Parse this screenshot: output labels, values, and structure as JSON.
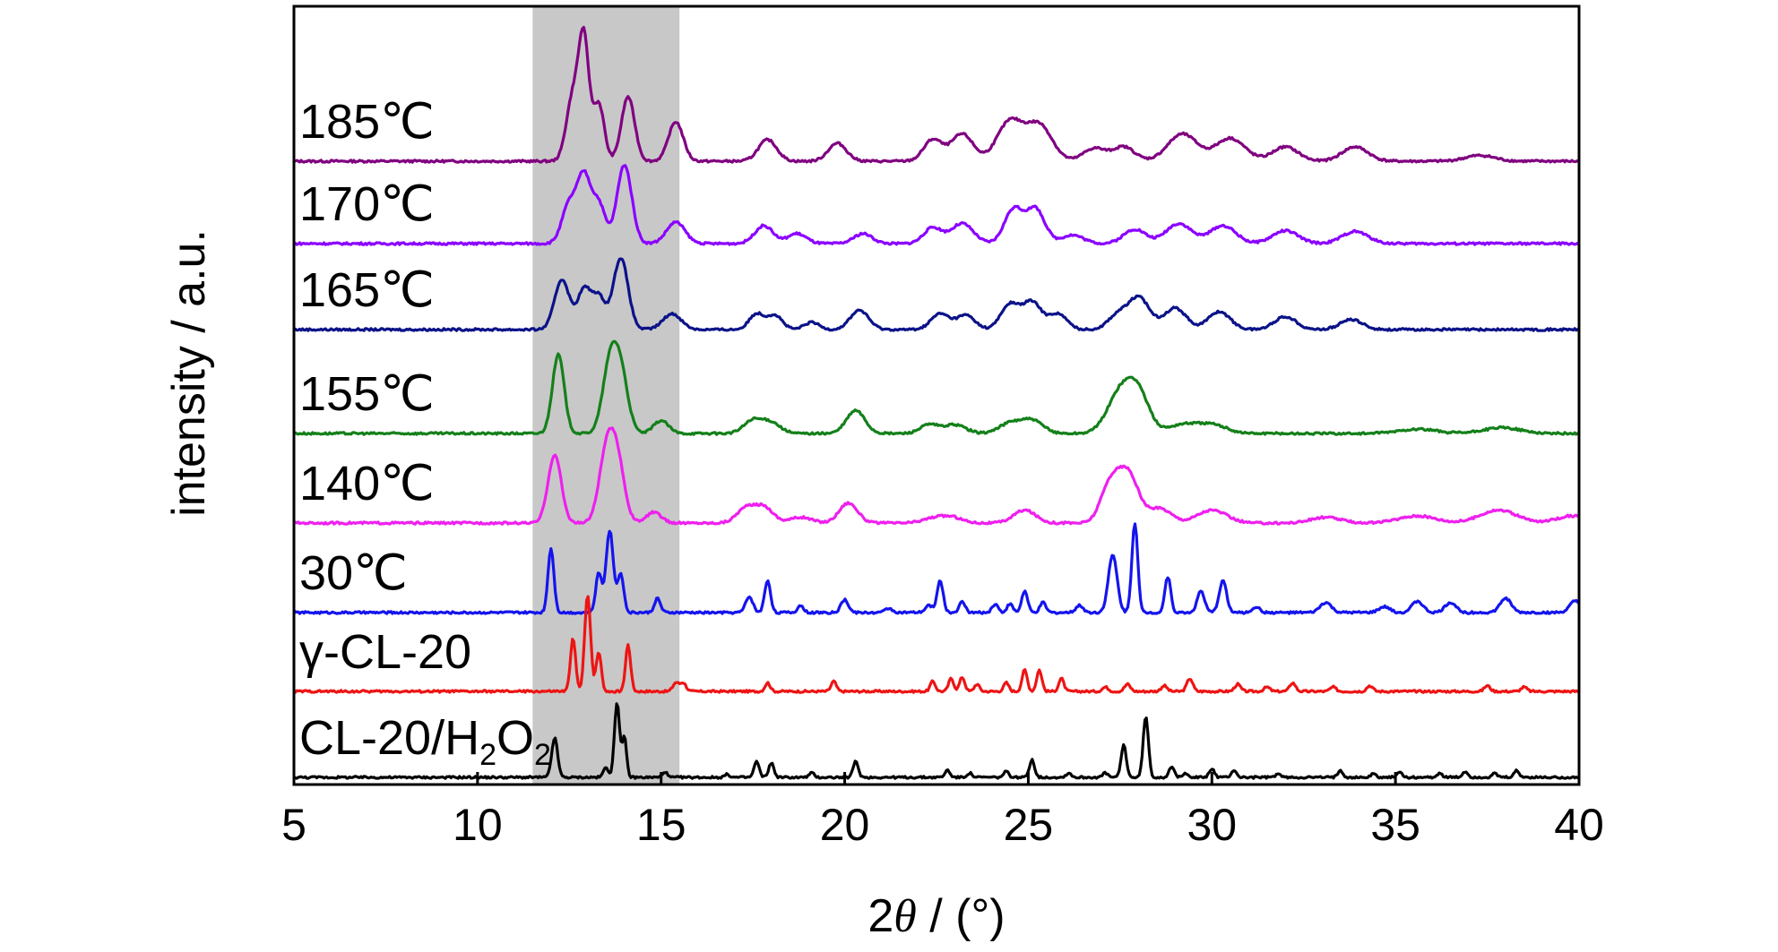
{
  "chart_data": {
    "type": "line",
    "title": "",
    "xlabel": "2θ / (°)",
    "xlabel_parts": {
      "pre": "2",
      "theta": "θ",
      "post": " / (°)"
    },
    "ylabel": "intensity / a.u.",
    "xlim": [
      5,
      40
    ],
    "xticks": [
      "5",
      "10",
      "15",
      "20",
      "25",
      "30",
      "35",
      "40"
    ],
    "y_ticks_shown": false,
    "grid": false,
    "legend": "none (series labelled directly on left)",
    "highlight_band": {
      "x": [
        11.5,
        15.5
      ],
      "color": "#c8c8c8"
    },
    "series": [
      {
        "name": "185℃",
        "color": "#800080",
        "offset": 7.4,
        "peaks": [
          [
            12.6,
            0.9,
            0.18
          ],
          [
            12.9,
            1.6,
            0.14
          ],
          [
            13.3,
            0.8,
            0.15
          ],
          [
            14.1,
            0.9,
            0.18
          ],
          [
            15.4,
            0.55,
            0.2
          ],
          [
            17.9,
            0.3,
            0.25
          ],
          [
            19.8,
            0.25,
            0.25
          ],
          [
            22.4,
            0.3,
            0.25
          ],
          [
            23.2,
            0.38,
            0.3
          ],
          [
            24.5,
            0.55,
            0.35
          ],
          [
            25.3,
            0.5,
            0.35
          ],
          [
            26.8,
            0.18,
            0.3
          ],
          [
            27.6,
            0.2,
            0.3
          ],
          [
            29.2,
            0.38,
            0.4
          ],
          [
            30.5,
            0.32,
            0.4
          ],
          [
            32.0,
            0.2,
            0.35
          ],
          [
            33.9,
            0.2,
            0.35
          ],
          [
            37.3,
            0.08,
            0.4
          ]
        ]
      },
      {
        "name": "170℃",
        "color": "#8b00ff",
        "offset": 6.25,
        "peaks": [
          [
            12.5,
            0.55,
            0.2
          ],
          [
            12.9,
            0.9,
            0.18
          ],
          [
            13.3,
            0.55,
            0.18
          ],
          [
            14.0,
            1.1,
            0.2
          ],
          [
            15.4,
            0.3,
            0.25
          ],
          [
            17.8,
            0.25,
            0.25
          ],
          [
            18.7,
            0.14,
            0.25
          ],
          [
            20.5,
            0.14,
            0.25
          ],
          [
            22.4,
            0.22,
            0.25
          ],
          [
            23.2,
            0.28,
            0.3
          ],
          [
            24.6,
            0.48,
            0.25
          ],
          [
            25.2,
            0.48,
            0.25
          ],
          [
            26.2,
            0.12,
            0.3
          ],
          [
            27.9,
            0.2,
            0.3
          ],
          [
            29.1,
            0.28,
            0.35
          ],
          [
            30.3,
            0.25,
            0.35
          ],
          [
            32.0,
            0.18,
            0.35
          ],
          [
            33.9,
            0.17,
            0.35
          ]
        ]
      },
      {
        "name": "165℃",
        "color": "#0b1288",
        "offset": 5.05,
        "peaks": [
          [
            12.3,
            0.7,
            0.2
          ],
          [
            12.9,
            0.55,
            0.18
          ],
          [
            13.3,
            0.45,
            0.18
          ],
          [
            13.9,
            1.0,
            0.2
          ],
          [
            15.3,
            0.22,
            0.25
          ],
          [
            17.6,
            0.22,
            0.2
          ],
          [
            18.1,
            0.2,
            0.2
          ],
          [
            19.1,
            0.1,
            0.2
          ],
          [
            20.4,
            0.27,
            0.25
          ],
          [
            22.6,
            0.22,
            0.25
          ],
          [
            23.3,
            0.2,
            0.25
          ],
          [
            24.5,
            0.35,
            0.25
          ],
          [
            25.1,
            0.38,
            0.25
          ],
          [
            25.8,
            0.22,
            0.25
          ],
          [
            27.4,
            0.18,
            0.25
          ],
          [
            28.0,
            0.45,
            0.3
          ],
          [
            29.0,
            0.3,
            0.3
          ],
          [
            30.2,
            0.25,
            0.3
          ],
          [
            32.0,
            0.18,
            0.3
          ],
          [
            33.8,
            0.14,
            0.3
          ]
        ]
      },
      {
        "name": "155℃",
        "color": "#14801a",
        "offset": 3.6,
        "peaks": [
          [
            12.2,
            1.1,
            0.16
          ],
          [
            13.6,
            0.9,
            0.2
          ],
          [
            13.9,
            0.8,
            0.2
          ],
          [
            15.0,
            0.18,
            0.2
          ],
          [
            17.5,
            0.18,
            0.25
          ],
          [
            18.0,
            0.15,
            0.25
          ],
          [
            20.3,
            0.32,
            0.25
          ],
          [
            22.3,
            0.12,
            0.25
          ],
          [
            23.0,
            0.12,
            0.3
          ],
          [
            24.5,
            0.14,
            0.3
          ],
          [
            25.1,
            0.18,
            0.3
          ],
          [
            27.5,
            0.55,
            0.35
          ],
          [
            28.0,
            0.5,
            0.3
          ],
          [
            29.2,
            0.12,
            0.4
          ],
          [
            30.0,
            0.12,
            0.4
          ],
          [
            35.6,
            0.06,
            0.5
          ],
          [
            37.9,
            0.08,
            0.5
          ]
        ]
      },
      {
        "name": "140℃",
        "color": "#ee20ee",
        "offset": 2.35,
        "peaks": [
          [
            12.1,
            0.95,
            0.18
          ],
          [
            13.5,
            0.9,
            0.2
          ],
          [
            13.8,
            0.85,
            0.2
          ],
          [
            14.8,
            0.15,
            0.2
          ],
          [
            17.3,
            0.2,
            0.25
          ],
          [
            17.8,
            0.22,
            0.25
          ],
          [
            18.8,
            0.08,
            0.3
          ],
          [
            20.1,
            0.28,
            0.25
          ],
          [
            22.4,
            0.06,
            0.3
          ],
          [
            22.9,
            0.08,
            0.3
          ],
          [
            24.9,
            0.18,
            0.3
          ],
          [
            27.2,
            0.45,
            0.25
          ],
          [
            27.7,
            0.7,
            0.3
          ],
          [
            28.6,
            0.2,
            0.3
          ],
          [
            30.0,
            0.18,
            0.4
          ],
          [
            33.1,
            0.08,
            0.4
          ],
          [
            35.6,
            0.1,
            0.5
          ],
          [
            37.8,
            0.18,
            0.5
          ],
          [
            39.8,
            0.1,
            0.4
          ]
        ]
      },
      {
        "name": "30℃",
        "color": "#1414ee",
        "offset": 1.1,
        "peaks": [
          [
            12.0,
            0.9,
            0.08
          ],
          [
            13.3,
            0.55,
            0.08
          ],
          [
            13.6,
            1.15,
            0.1
          ],
          [
            13.9,
            0.55,
            0.08
          ],
          [
            14.9,
            0.2,
            0.08
          ],
          [
            17.4,
            0.22,
            0.1
          ],
          [
            17.9,
            0.45,
            0.08
          ],
          [
            18.8,
            0.1,
            0.08
          ],
          [
            20.0,
            0.18,
            0.1
          ],
          [
            21.2,
            0.06,
            0.1
          ],
          [
            22.3,
            0.1,
            0.1
          ],
          [
            22.6,
            0.45,
            0.08
          ],
          [
            23.2,
            0.15,
            0.08
          ],
          [
            24.1,
            0.12,
            0.08
          ],
          [
            24.5,
            0.12,
            0.08
          ],
          [
            24.9,
            0.3,
            0.08
          ],
          [
            25.4,
            0.14,
            0.08
          ],
          [
            26.4,
            0.1,
            0.1
          ],
          [
            27.3,
            0.8,
            0.12
          ],
          [
            27.9,
            1.25,
            0.08
          ],
          [
            28.8,
            0.5,
            0.08
          ],
          [
            29.7,
            0.3,
            0.1
          ],
          [
            30.3,
            0.45,
            0.1
          ],
          [
            31.2,
            0.08,
            0.1
          ],
          [
            33.1,
            0.14,
            0.15
          ],
          [
            34.7,
            0.08,
            0.15
          ],
          [
            35.6,
            0.16,
            0.15
          ],
          [
            36.5,
            0.14,
            0.15
          ],
          [
            38.0,
            0.2,
            0.15
          ],
          [
            39.9,
            0.16,
            0.15
          ]
        ]
      },
      {
        "name": "γ-CL-20",
        "color": "#ee1414",
        "offset": 0.0,
        "peaks": [
          [
            12.6,
            0.75,
            0.07
          ],
          [
            13.0,
            1.35,
            0.08
          ],
          [
            13.3,
            0.55,
            0.07
          ],
          [
            14.1,
            0.65,
            0.07
          ],
          [
            15.4,
            0.12,
            0.08
          ],
          [
            15.6,
            0.12,
            0.08
          ],
          [
            17.9,
            0.12,
            0.07
          ],
          [
            19.7,
            0.14,
            0.07
          ],
          [
            22.4,
            0.14,
            0.07
          ],
          [
            22.9,
            0.18,
            0.07
          ],
          [
            23.2,
            0.2,
            0.07
          ],
          [
            23.6,
            0.1,
            0.07
          ],
          [
            24.4,
            0.12,
            0.07
          ],
          [
            24.9,
            0.3,
            0.07
          ],
          [
            25.3,
            0.3,
            0.07
          ],
          [
            25.9,
            0.18,
            0.07
          ],
          [
            27.1,
            0.06,
            0.08
          ],
          [
            27.7,
            0.1,
            0.08
          ],
          [
            28.7,
            0.08,
            0.08
          ],
          [
            29.4,
            0.18,
            0.08
          ],
          [
            30.7,
            0.1,
            0.08
          ],
          [
            31.5,
            0.06,
            0.08
          ],
          [
            32.2,
            0.12,
            0.08
          ],
          [
            33.3,
            0.06,
            0.08
          ],
          [
            34.3,
            0.08,
            0.08
          ],
          [
            37.5,
            0.08,
            0.08
          ],
          [
            38.5,
            0.06,
            0.08
          ]
        ]
      },
      {
        "name": "CL-20/H₂O₂",
        "label_parts": {
          "main": "CL-20/H",
          "sub1": "2",
          "mid": "O",
          "sub2": "2"
        },
        "color": "#000000",
        "offset": -1.2,
        "peaks": [
          [
            12.1,
            0.55,
            0.08
          ],
          [
            13.5,
            0.14,
            0.07
          ],
          [
            13.8,
            1.05,
            0.07
          ],
          [
            14.0,
            0.55,
            0.06
          ],
          [
            15.1,
            0.08,
            0.06
          ],
          [
            16.8,
            0.04,
            0.07
          ],
          [
            17.6,
            0.22,
            0.07
          ],
          [
            18.0,
            0.2,
            0.07
          ],
          [
            19.1,
            0.06,
            0.07
          ],
          [
            20.3,
            0.22,
            0.07
          ],
          [
            22.8,
            0.1,
            0.07
          ],
          [
            23.4,
            0.06,
            0.07
          ],
          [
            24.4,
            0.08,
            0.07
          ],
          [
            25.1,
            0.25,
            0.07
          ],
          [
            26.1,
            0.06,
            0.07
          ],
          [
            27.1,
            0.06,
            0.07
          ],
          [
            27.6,
            0.45,
            0.07
          ],
          [
            28.2,
            0.85,
            0.07
          ],
          [
            28.9,
            0.15,
            0.07
          ],
          [
            29.3,
            0.06,
            0.07
          ],
          [
            30.0,
            0.12,
            0.07
          ],
          [
            30.6,
            0.1,
            0.07
          ],
          [
            31.8,
            0.05,
            0.07
          ],
          [
            33.5,
            0.1,
            0.07
          ],
          [
            34.4,
            0.05,
            0.07
          ],
          [
            35.1,
            0.08,
            0.07
          ],
          [
            36.2,
            0.06,
            0.07
          ],
          [
            36.9,
            0.08,
            0.07
          ],
          [
            37.7,
            0.05,
            0.07
          ],
          [
            38.3,
            0.09,
            0.07
          ]
        ]
      }
    ]
  }
}
